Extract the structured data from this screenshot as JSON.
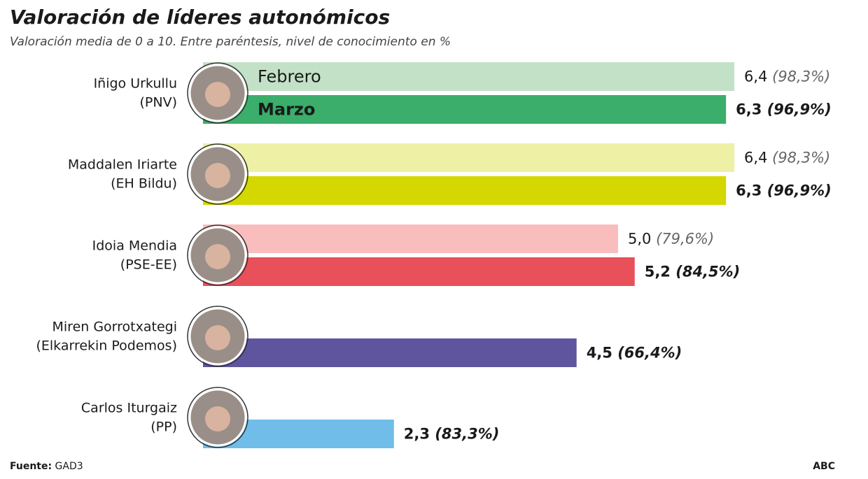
{
  "chart_data": {
    "type": "grouped-hbar",
    "title": "Valoración de líderes autonómicos",
    "subtitle": "Valoración media de 0 a 10. Entre paréntesis, nivel de conocimiento en %",
    "categories": [
      "Iñigo Urkullu",
      "Maddalen Iriarte",
      "Idoia Mendia",
      "Miren Gorrotxategi",
      "Carlos Iturgaiz"
    ],
    "parties": [
      "(PNV)",
      "(EH Bildu)",
      "(PSE-EE)",
      "(Elkarrekin Podemos)",
      "(PP)"
    ],
    "series": [
      {
        "name": "Febrero",
        "colors": [
          "#c3e1c6",
          "#eef0a6",
          "#f9bdbd",
          null,
          null
        ],
        "values": [
          6.4,
          6.4,
          5.0,
          null,
          null
        ],
        "value_labels": [
          "6,4",
          "6,4",
          "5,0",
          null,
          null
        ],
        "knowledge": [
          98.3,
          98.3,
          79.6,
          null,
          null
        ],
        "knowledge_labels": [
          "(98,3%)",
          "(98,3%)",
          "(79,6%)",
          null,
          null
        ]
      },
      {
        "name": "Marzo",
        "colors": [
          "#3aae6a",
          "#d4d700",
          "#e8505a",
          "#5f559e",
          "#6fbde8"
        ],
        "values": [
          6.3,
          6.3,
          5.2,
          4.5,
          2.3
        ],
        "value_labels": [
          "6,3",
          "6,3",
          "5,2",
          "4,5",
          "2,3"
        ],
        "knowledge": [
          96.9,
          96.9,
          84.5,
          66.4,
          83.3
        ],
        "knowledge_labels": [
          "(96,9%)",
          "(96,9%)",
          "(84,5%)",
          "(66,4%)",
          "(83,3%)"
        ]
      }
    ],
    "source_label": "Fuente:",
    "source": "GAD3",
    "brand": "ABC"
  }
}
